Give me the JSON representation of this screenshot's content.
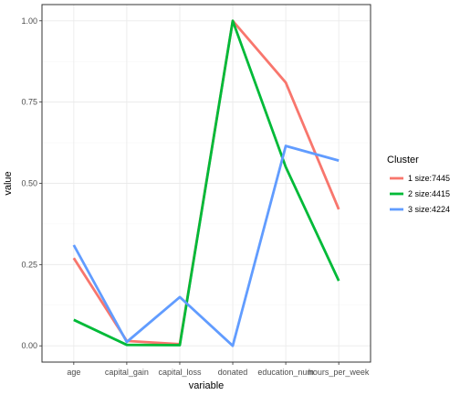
{
  "chart_data": {
    "type": "line",
    "title": "",
    "xlabel": "variable",
    "ylabel": "value",
    "categories": [
      "age",
      "capital_gain",
      "capital_loss",
      "donated",
      "education_num",
      "hours_per_week"
    ],
    "ylim": [
      0,
      1
    ],
    "yticks": [
      0,
      0.25,
      0.5,
      0.75,
      1
    ],
    "ytick_labels": [
      "0.00",
      "0.25",
      "0.50",
      "0.75",
      "1.00"
    ],
    "grid": true,
    "legend_title": "Cluster",
    "legend_position": "right",
    "series": [
      {
        "name": "1 size:7445",
        "color": "#F8766D",
        "values": [
          0.27,
          0.015,
          0.005,
          1.0,
          0.81,
          0.42
        ]
      },
      {
        "name": "2 size:4415",
        "color": "#00BA38",
        "values": [
          0.08,
          0.003,
          0.002,
          1.0,
          0.55,
          0.2
        ]
      },
      {
        "name": "3 size:4224",
        "color": "#619CFF",
        "values": [
          0.31,
          0.012,
          0.15,
          0.0,
          0.615,
          0.57
        ]
      }
    ]
  }
}
